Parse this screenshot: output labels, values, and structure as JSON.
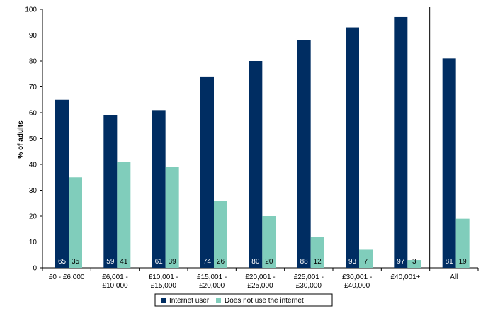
{
  "chart_data": {
    "type": "bar",
    "categories": [
      [
        "£0 - £6,000"
      ],
      [
        "£6,001 -",
        "£10,000"
      ],
      [
        "£10,001 -",
        "£15,000"
      ],
      [
        "£15,001 -",
        "£20,000"
      ],
      [
        "£20,001 -",
        "£25,000"
      ],
      [
        "£25,001 -",
        "£30,000"
      ],
      [
        "£30,001 -",
        "£40,000"
      ],
      [
        "£40,001+"
      ],
      [
        "All"
      ]
    ],
    "series": [
      {
        "name": "Internet user",
        "color": "#002D62",
        "label_color": "#ffffff",
        "values": [
          65,
          59,
          61,
          74,
          80,
          88,
          93,
          97,
          81
        ]
      },
      {
        "name": "Does not use the internet",
        "color": "#80CDBB",
        "label_color": "#000000",
        "values": [
          35,
          41,
          39,
          26,
          20,
          12,
          7,
          3,
          19
        ]
      }
    ],
    "ylabel": "% of adults",
    "xlabel": "",
    "ylim": [
      0,
      100
    ],
    "yticks": [
      0,
      10,
      20,
      30,
      40,
      50,
      60,
      70,
      80,
      90,
      100
    ],
    "separator_before_category": 8,
    "legend_position": "bottom",
    "grid": false
  }
}
